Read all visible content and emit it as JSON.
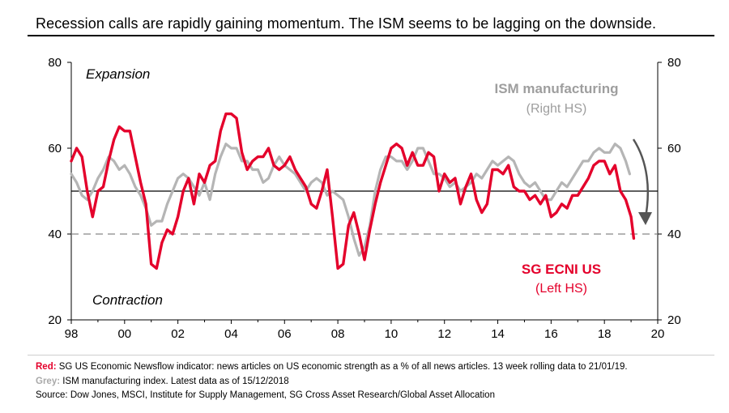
{
  "title": "Recession calls are rapidly gaining momentum. The ISM seems to be lagging on the downside.",
  "colors": {
    "red": "#e4002b",
    "grey": "#b5b5b5",
    "axis": "#000000",
    "dash": "#888888"
  },
  "chart_data": {
    "type": "line",
    "x_range": [
      1998,
      2020
    ],
    "x_ticks": [
      "98",
      "00",
      "02",
      "04",
      "06",
      "08",
      "10",
      "12",
      "14",
      "16",
      "18",
      "20"
    ],
    "y_left": {
      "range": [
        20,
        80
      ],
      "ticks": [
        "20",
        "40",
        "60",
        "80"
      ]
    },
    "y_right": {
      "range": [
        20,
        80
      ],
      "ticks": [
        "20",
        "40",
        "60",
        "80"
      ]
    },
    "reference_lines": [
      {
        "y": 50,
        "style": "solid"
      },
      {
        "y": 40,
        "style": "dashed"
      }
    ],
    "annotations": {
      "expansion": "Expansion",
      "contraction": "Contraction",
      "ism_label": "ISM manufacturing",
      "ism_sub": "(Right HS)",
      "ecni_label": "SG ECNI US",
      "ecni_sub": "(Left HS)"
    },
    "series": [
      {
        "name": "SG ECNI US",
        "axis": "left",
        "color": "#e4002b",
        "x": [
          1998.0,
          1998.2,
          1998.4,
          1998.6,
          1998.8,
          1999.0,
          1999.2,
          1999.4,
          1999.6,
          1999.8,
          2000.0,
          2000.2,
          2000.4,
          2000.6,
          2000.8,
          2001.0,
          2001.2,
          2001.4,
          2001.6,
          2001.8,
          2002.0,
          2002.2,
          2002.4,
          2002.6,
          2002.8,
          2003.0,
          2003.2,
          2003.4,
          2003.6,
          2003.8,
          2004.0,
          2004.2,
          2004.4,
          2004.6,
          2004.8,
          2005.0,
          2005.2,
          2005.4,
          2005.6,
          2005.8,
          2006.0,
          2006.2,
          2006.4,
          2006.6,
          2006.8,
          2007.0,
          2007.2,
          2007.4,
          2007.6,
          2007.8,
          2008.0,
          2008.2,
          2008.4,
          2008.6,
          2008.8,
          2009.0,
          2009.2,
          2009.4,
          2009.6,
          2009.8,
          2010.0,
          2010.2,
          2010.4,
          2010.6,
          2010.8,
          2011.0,
          2011.2,
          2011.4,
          2011.6,
          2011.8,
          2012.0,
          2012.2,
          2012.4,
          2012.6,
          2012.8,
          2013.0,
          2013.2,
          2013.4,
          2013.6,
          2013.8,
          2014.0,
          2014.2,
          2014.4,
          2014.6,
          2014.8,
          2015.0,
          2015.2,
          2015.4,
          2015.6,
          2015.8,
          2016.0,
          2016.2,
          2016.4,
          2016.6,
          2016.8,
          2017.0,
          2017.2,
          2017.4,
          2017.6,
          2017.8,
          2018.0,
          2018.2,
          2018.4,
          2018.6,
          2018.8,
          2019.0,
          2019.1
        ],
        "values": [
          57,
          60,
          58,
          50,
          44,
          50,
          51,
          57,
          62,
          65,
          64,
          64,
          58,
          52,
          47,
          33,
          32,
          38,
          41,
          40,
          44,
          50,
          53,
          47,
          54,
          52,
          56,
          57,
          64,
          68,
          68,
          67,
          59,
          55,
          57,
          58,
          58,
          60,
          56,
          55,
          56,
          58,
          55,
          53,
          51,
          47,
          46,
          50,
          55,
          44,
          32,
          33,
          42,
          45,
          40,
          34,
          41,
          47,
          52,
          56,
          60,
          61,
          60,
          56,
          59,
          56,
          56,
          59,
          58,
          50,
          54,
          52,
          53,
          47,
          51,
          54,
          48,
          45,
          47,
          55,
          55,
          54,
          56,
          51,
          50,
          50,
          48,
          49,
          47,
          49,
          44,
          45,
          47,
          46,
          49,
          49,
          51,
          53,
          56,
          57,
          57,
          54,
          56,
          50,
          48,
          44,
          39
        ]
      },
      {
        "name": "ISM manufacturing",
        "axis": "right",
        "color": "#b5b5b5",
        "x": [
          1998.0,
          1998.2,
          1998.4,
          1998.6,
          1998.8,
          1999.0,
          1999.2,
          1999.4,
          1999.6,
          1999.8,
          2000.0,
          2000.2,
          2000.4,
          2000.6,
          2000.8,
          2001.0,
          2001.2,
          2001.4,
          2001.6,
          2001.8,
          2002.0,
          2002.2,
          2002.4,
          2002.6,
          2002.8,
          2003.0,
          2003.2,
          2003.4,
          2003.6,
          2003.8,
          2004.0,
          2004.2,
          2004.4,
          2004.6,
          2004.8,
          2005.0,
          2005.2,
          2005.4,
          2005.6,
          2005.8,
          2006.0,
          2006.2,
          2006.4,
          2006.6,
          2006.8,
          2007.0,
          2007.2,
          2007.4,
          2007.6,
          2007.8,
          2008.0,
          2008.2,
          2008.4,
          2008.6,
          2008.8,
          2009.0,
          2009.2,
          2009.4,
          2009.6,
          2009.8,
          2010.0,
          2010.2,
          2010.4,
          2010.6,
          2010.8,
          2011.0,
          2011.2,
          2011.4,
          2011.6,
          2011.8,
          2012.0,
          2012.2,
          2012.4,
          2012.6,
          2012.8,
          2013.0,
          2013.2,
          2013.4,
          2013.6,
          2013.8,
          2014.0,
          2014.2,
          2014.4,
          2014.6,
          2014.8,
          2015.0,
          2015.2,
          2015.4,
          2015.6,
          2015.8,
          2016.0,
          2016.2,
          2016.4,
          2016.6,
          2016.8,
          2017.0,
          2017.2,
          2017.4,
          2017.6,
          2017.8,
          2018.0,
          2018.2,
          2018.4,
          2018.6,
          2018.8,
          2018.95
        ],
        "values": [
          54,
          52,
          49,
          48,
          50,
          53,
          55,
          58,
          57,
          55,
          56,
          54,
          51,
          49,
          46,
          42,
          43,
          43,
          47,
          50,
          53,
          54,
          53,
          51,
          49,
          52,
          48,
          54,
          58,
          61,
          60,
          60,
          57,
          57,
          55,
          55,
          52,
          53,
          56,
          58,
          56,
          55,
          54,
          52,
          50,
          52,
          53,
          52,
          49,
          50,
          49,
          48,
          44,
          39,
          35,
          37,
          42,
          50,
          55,
          58,
          58,
          57,
          57,
          55,
          57,
          60,
          60,
          57,
          54,
          54,
          53,
          51,
          52,
          50,
          51,
          52,
          54,
          53,
          55,
          57,
          56,
          57,
          58,
          57,
          54,
          52,
          51,
          52,
          50,
          48,
          48,
          50,
          52,
          51,
          53,
          55,
          57,
          57,
          59,
          60,
          59,
          59,
          61,
          60,
          57,
          54
        ]
      }
    ]
  },
  "footnotes": [
    {
      "key": "Red:",
      "key_class": "key-red",
      "text": " SG US Economic Newsflow indicator: news articles on US economic strength as a % of all news articles. 13 week rolling data to 21/01/19."
    },
    {
      "key": "Grey:",
      "key_class": "key-grey",
      "text": " ISM manufacturing index. Latest data as of 15/12/2018"
    },
    {
      "key": "",
      "key_class": "",
      "text": "Source: Dow Jones, MSCI, Institute for Supply Management, SG Cross Asset Research/Global Asset Allocation"
    }
  ]
}
